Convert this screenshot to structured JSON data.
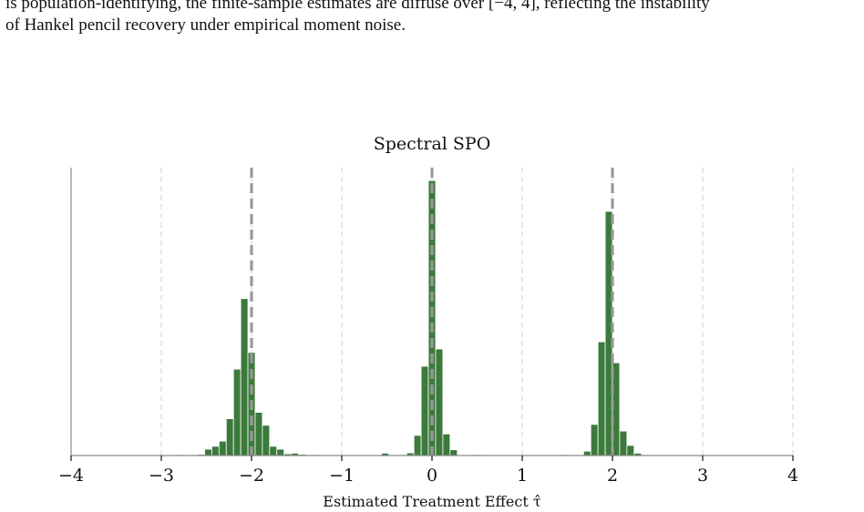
{
  "paper": {
    "line1": "is population-identifying, the finite-sample estimates are diffuse over [−4, 4], reflecting the instability",
    "line2": "of Hankel pencil recovery under empirical moment noise."
  },
  "colors": {
    "bar": "#3b7a3b",
    "bar_edge": "#ffffff",
    "reference_line": "#999999",
    "grid": "#d9d9d9",
    "axis": "#888888"
  },
  "chart_data": {
    "type": "bar",
    "title": "Spectral SPO",
    "xlabel": "Estimated Treatment Effect τ̂",
    "ylabel": "",
    "xlim": [
      -4,
      4
    ],
    "ylim": [
      0,
      1.0
    ],
    "xticks": [
      -4,
      -3,
      -2,
      -1,
      0,
      1,
      2,
      3,
      4
    ],
    "xtick_labels": [
      "−4",
      "−3",
      "−2",
      "−1",
      "0",
      "1",
      "2",
      "3",
      "4"
    ],
    "grid": "vertical dashed",
    "reference_lines": [
      -2,
      0,
      2
    ],
    "bin_width": 0.08,
    "bins": [
      {
        "x": -2.8,
        "h": 0.003
      },
      {
        "x": -2.64,
        "h": 0.003
      },
      {
        "x": -2.56,
        "h": 0.004
      },
      {
        "x": -2.48,
        "h": 0.022
      },
      {
        "x": -2.4,
        "h": 0.032
      },
      {
        "x": -2.32,
        "h": 0.05
      },
      {
        "x": -2.24,
        "h": 0.128
      },
      {
        "x": -2.16,
        "h": 0.3
      },
      {
        "x": -2.08,
        "h": 0.545
      },
      {
        "x": -2.0,
        "h": 0.358
      },
      {
        "x": -1.92,
        "h": 0.15
      },
      {
        "x": -1.84,
        "h": 0.105
      },
      {
        "x": -1.76,
        "h": 0.032
      },
      {
        "x": -1.68,
        "h": 0.022
      },
      {
        "x": -1.6,
        "h": 0.006
      },
      {
        "x": -1.52,
        "h": 0.008
      },
      {
        "x": -1.44,
        "h": 0.004
      },
      {
        "x": -1.36,
        "h": 0.003
      },
      {
        "x": -1.28,
        "h": 0.003
      },
      {
        "x": -0.52,
        "h": 0.008
      },
      {
        "x": -0.24,
        "h": 0.009
      },
      {
        "x": -0.16,
        "h": 0.07
      },
      {
        "x": -0.08,
        "h": 0.31
      },
      {
        "x": 0.0,
        "h": 0.955
      },
      {
        "x": 0.08,
        "h": 0.37
      },
      {
        "x": 0.16,
        "h": 0.075
      },
      {
        "x": 0.24,
        "h": 0.02
      },
      {
        "x": 0.52,
        "h": 0.003
      },
      {
        "x": 1.48,
        "h": 0.003
      },
      {
        "x": 1.72,
        "h": 0.015
      },
      {
        "x": 1.8,
        "h": 0.108
      },
      {
        "x": 1.88,
        "h": 0.395
      },
      {
        "x": 1.96,
        "h": 0.848
      },
      {
        "x": 2.04,
        "h": 0.322
      },
      {
        "x": 2.12,
        "h": 0.085
      },
      {
        "x": 2.2,
        "h": 0.035
      },
      {
        "x": 2.28,
        "h": 0.008
      }
    ]
  }
}
